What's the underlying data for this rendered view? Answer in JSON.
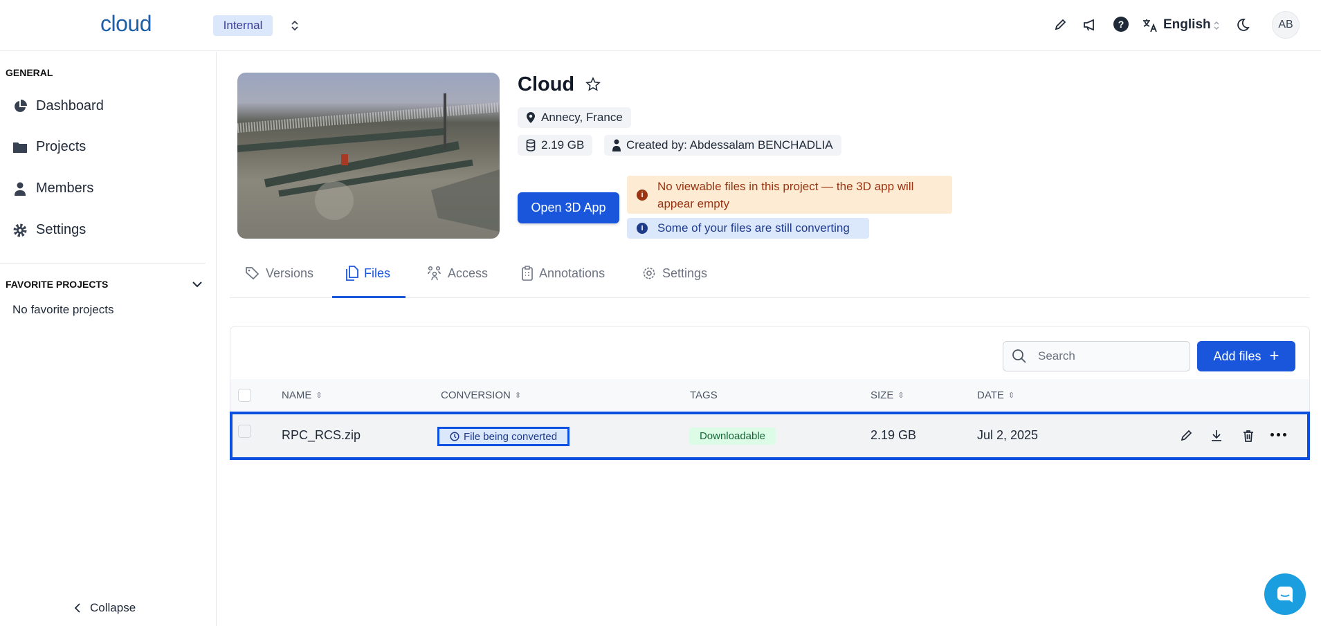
{
  "header": {
    "logo": "cloud",
    "workspace": "Internal",
    "language": "English",
    "avatar": "AB",
    "icons": [
      "pencil-icon",
      "megaphone-icon",
      "help-icon",
      "translate-icon",
      "moon-icon"
    ]
  },
  "sidebar": {
    "general_title": "GENERAL",
    "items": [
      {
        "label": "Dashboard",
        "icon": "pie-chart-icon"
      },
      {
        "label": "Projects",
        "icon": "folder-icon"
      },
      {
        "label": "Members",
        "icon": "user-icon"
      },
      {
        "label": "Settings",
        "icon": "gear-icon"
      }
    ],
    "favorites_title": "FAVORITE PROJECTS",
    "favorites_empty": "No favorite projects",
    "collapse": "Collapse"
  },
  "project": {
    "title": "Cloud",
    "location": "Annecy, France",
    "size": "2.19 GB",
    "created_by": "Created by: Abdessalam BENCHADLIA",
    "open_button": "Open 3D App",
    "warning": "No viewable files in this project — the 3D app will appear empty",
    "info": "Some of your files are still converting"
  },
  "tabs": [
    {
      "label": "Versions"
    },
    {
      "label": "Files",
      "active": true
    },
    {
      "label": "Access"
    },
    {
      "label": "Annotations"
    },
    {
      "label": "Settings"
    }
  ],
  "files": {
    "search_placeholder": "Search",
    "add_button": "Add files",
    "columns": [
      "NAME",
      "CONVERSION",
      "TAGS",
      "SIZE",
      "DATE"
    ],
    "rows": [
      {
        "name": "RPC_RCS.zip",
        "conversion": "File being converted",
        "tag": "Downloadable",
        "size": "2.19 GB",
        "date": "Jul 2, 2025"
      }
    ]
  },
  "colors": {
    "primary": "#1a56db",
    "highlight": "#0a4fe0",
    "warning_bg": "#feebd3",
    "info_bg": "#dbe7fb",
    "tag_bg": "#dcfce7"
  }
}
